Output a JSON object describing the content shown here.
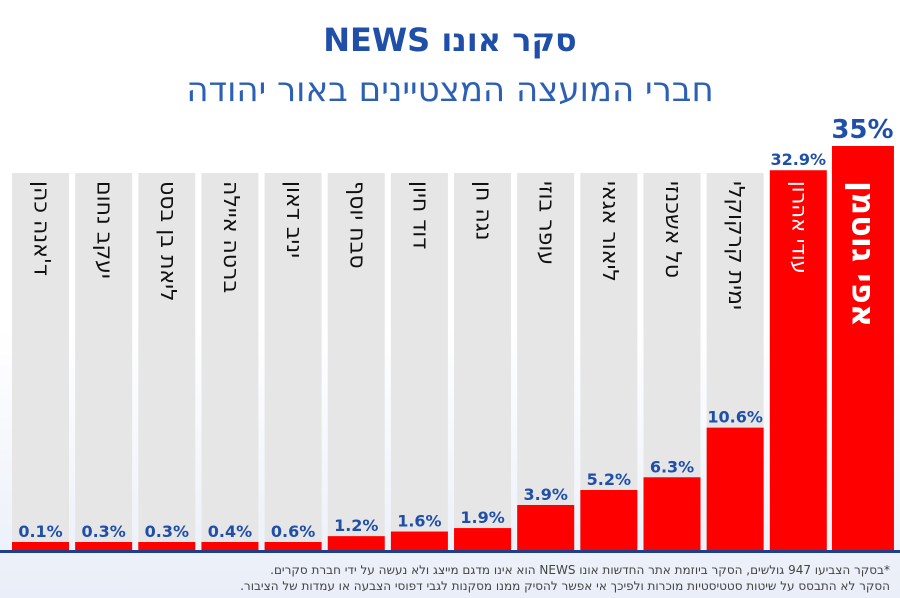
{
  "title": "סקר אונו NEWS",
  "subtitle": "חברי המועצה המצטיינים באור יהודה",
  "footnote": {
    "line1": "*בסקר הצביעו 947 גולשים, הסקר ביוזמת אתר החדשות אונו NEWS הוא אינו מדגם מייצג ולא נעשה על ידי חברת סקרים.",
    "line2": "הסקר לא התבסס על שיטות סטטיסטיות מוכרות ולפיכך אי אפשר להסיק ממנו מסקנות לגבי דפוסי הצבעה או עמדות של הציבור."
  },
  "colors": {
    "bar": "#ff0000",
    "background_column": "#e6e6e6",
    "value_label": "#1f4fa8",
    "winner_text": "#ffffff",
    "title": "#1f4fa8"
  },
  "chart_data": {
    "type": "bar",
    "title": "סקר אונו NEWS",
    "subtitle": "חברי המועצה המצטיינים באור יהודה",
    "unit": "%",
    "ylim": [
      0,
      35
    ],
    "categories": [
      "ד'אנה כהן",
      "יעקב נחום",
      "ליאת בן בסט",
      "ברטה איילה",
      "יניב דאון",
      "סבח יוסף",
      "דוד חיון",
      "נגה חן",
      "עופר בוזי",
      "ליאור אגאי",
      "טל אשכנזי",
      "ימית קרקוקלי",
      "עודי אהרון",
      "אפי גוטמן"
    ],
    "values": [
      0.1,
      0.3,
      0.3,
      0.4,
      0.6,
      1.2,
      1.6,
      1.9,
      3.9,
      5.2,
      6.3,
      10.6,
      32.9,
      35
    ],
    "labels": [
      "0.1%",
      "0.3%",
      "0.3%",
      "0.4%",
      "0.6%",
      "1.2%",
      "1.6%",
      "1.9%",
      "3.9%",
      "5.2%",
      "6.3%",
      "10.6%",
      "32.9%",
      "35%"
    ],
    "grid": false,
    "legend": "none"
  }
}
